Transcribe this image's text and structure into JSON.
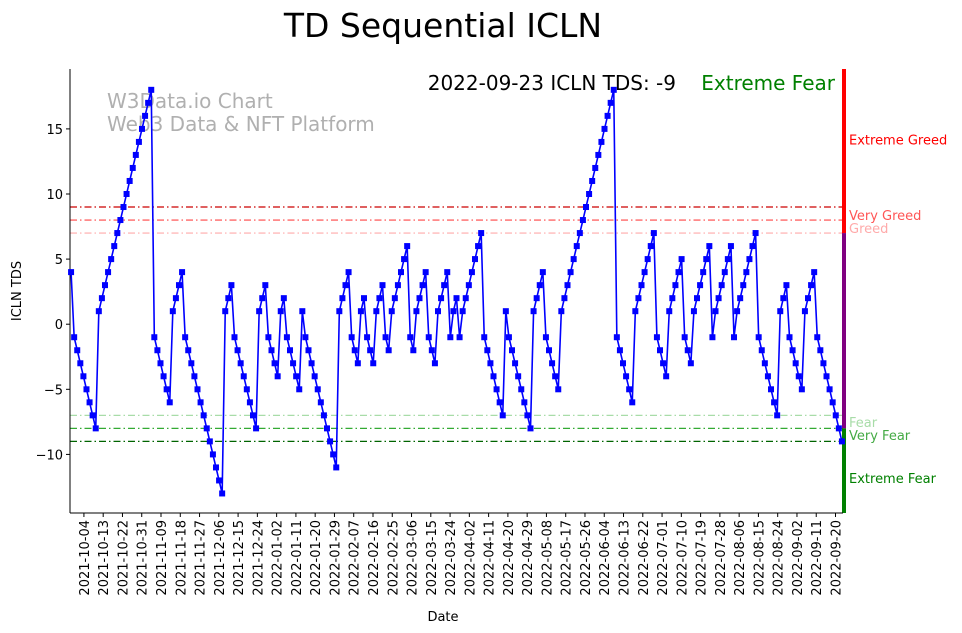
{
  "chart_data": {
    "type": "line",
    "title": "TD Sequential ICLN",
    "xlabel": "Date",
    "ylabel": "ICLN TDS",
    "ylim": [
      -14.5,
      19.6
    ],
    "xlim": [
      "2021-09-27",
      "2022-09-24"
    ],
    "x_start": "2021-09-28",
    "x_end": "2022-09-23",
    "yticks": [
      -10,
      -5,
      0,
      5,
      10,
      15
    ],
    "xticks": [
      "2021-10-04",
      "2021-10-13",
      "2021-10-22",
      "2021-10-31",
      "2021-11-09",
      "2021-11-18",
      "2021-11-27",
      "2021-12-06",
      "2021-12-15",
      "2021-12-24",
      "2022-01-02",
      "2022-01-11",
      "2022-01-20",
      "2022-01-29",
      "2022-02-07",
      "2022-02-16",
      "2022-02-25",
      "2022-03-06",
      "2022-03-15",
      "2022-03-24",
      "2022-04-02",
      "2022-04-11",
      "2022-04-20",
      "2022-04-29",
      "2022-05-08",
      "2022-05-17",
      "2022-05-26",
      "2022-06-04",
      "2022-06-13",
      "2022-06-22",
      "2022-07-01",
      "2022-07-10",
      "2022-07-19",
      "2022-07-28",
      "2022-08-06",
      "2022-08-15",
      "2022-08-24",
      "2022-09-02",
      "2022-09-11",
      "2022-09-20"
    ],
    "series": [
      {
        "name": "ICLN TDS",
        "color": "#0000ff",
        "values": [
          4,
          -1,
          -2,
          -3,
          -4,
          -5,
          -6,
          -7,
          -8,
          1,
          2,
          3,
          4,
          5,
          6,
          7,
          8,
          9,
          10,
          11,
          12,
          13,
          14,
          15,
          16,
          17,
          18,
          -1,
          -2,
          -3,
          -4,
          -5,
          -6,
          1,
          2,
          3,
          4,
          -1,
          -2,
          -3,
          -4,
          -5,
          -6,
          -7,
          -8,
          -9,
          -10,
          -11,
          -12,
          -13,
          1,
          2,
          3,
          -1,
          -2,
          -3,
          -4,
          -5,
          -6,
          -7,
          -8,
          1,
          2,
          3,
          -1,
          -2,
          -3,
          -4,
          1,
          2,
          -1,
          -2,
          -3,
          -4,
          -5,
          1,
          -1,
          -2,
          -3,
          -4,
          -5,
          -6,
          -7,
          -8,
          -9,
          -10,
          -11,
          1,
          2,
          3,
          4,
          -1,
          -2,
          -3,
          1,
          2,
          -1,
          -2,
          -3,
          1,
          2,
          3,
          -1,
          -2,
          1,
          2,
          3,
          4,
          5,
          6,
          -1,
          -2,
          1,
          2,
          3,
          4,
          -1,
          -2,
          -3,
          1,
          2,
          3,
          4,
          -1,
          1,
          2,
          -1,
          1,
          2,
          3,
          4,
          5,
          6,
          7,
          -1,
          -2,
          -3,
          -4,
          -5,
          -6,
          -7,
          1,
          -1,
          -2,
          -3,
          -4,
          -5,
          -6,
          -7,
          -8,
          1,
          2,
          3,
          4,
          -1,
          -2,
          -3,
          -4,
          -5,
          1,
          2,
          3,
          4,
          5,
          6,
          7,
          8,
          9,
          10,
          11,
          12,
          13,
          14,
          15,
          16,
          17,
          18,
          -1,
          -2,
          -3,
          -4,
          -5,
          -6,
          1,
          2,
          3,
          4,
          5,
          6,
          7,
          -1,
          -2,
          -3,
          -4,
          1,
          2,
          3,
          4,
          5,
          -1,
          -2,
          -3,
          1,
          2,
          3,
          4,
          5,
          6,
          -1,
          1,
          2,
          3,
          4,
          5,
          6,
          -1,
          1,
          2,
          3,
          4,
          5,
          6,
          7,
          -1,
          -2,
          -3,
          -4,
          -5,
          -6,
          -7,
          1,
          2,
          3,
          -1,
          -2,
          -3,
          -4,
          -5,
          1,
          2,
          3,
          4,
          -1,
          -2,
          -3,
          -4,
          -5,
          -6,
          -7,
          -8,
          -9
        ]
      }
    ],
    "thresholds": [
      {
        "value": 9,
        "color": "#cc0000"
      },
      {
        "value": 8,
        "color": "#ff4444"
      },
      {
        "value": 7,
        "color": "#ffaaaa"
      },
      {
        "value": -7,
        "color": "#a8dca8"
      },
      {
        "value": -8,
        "color": "#33aa33"
      },
      {
        "value": -9,
        "color": "#006400"
      }
    ],
    "zone_labels": [
      {
        "label": "Extreme Greed",
        "value": 14.2,
        "color": "#ff0000"
      },
      {
        "label": "Very Greed",
        "value": 8.4,
        "color": "#ff5555"
      },
      {
        "label": "Greed",
        "value": 7.4,
        "color": "#ffaaaa"
      },
      {
        "label": "Fear",
        "value": -7.5,
        "color": "#a8dca8"
      },
      {
        "label": "Very Fear",
        "value": -8.5,
        "color": "#44aa44"
      },
      {
        "label": "Extreme Fear",
        "value": -11.8,
        "color": "#008000"
      }
    ],
    "zone_bar": [
      {
        "from": 19.6,
        "to": 7,
        "color": "#ff0000"
      },
      {
        "from": 7,
        "to": -8,
        "color": "#800080"
      },
      {
        "from": -8,
        "to": -14.5,
        "color": "#008000"
      }
    ],
    "annotation": {
      "text": "2022-09-23 ICLN TDS: -9",
      "status": "Extreme Fear",
      "status_color": "#008000"
    },
    "watermark": [
      "W3Data.io Chart",
      "Web3 Data & NFT Platform"
    ]
  }
}
